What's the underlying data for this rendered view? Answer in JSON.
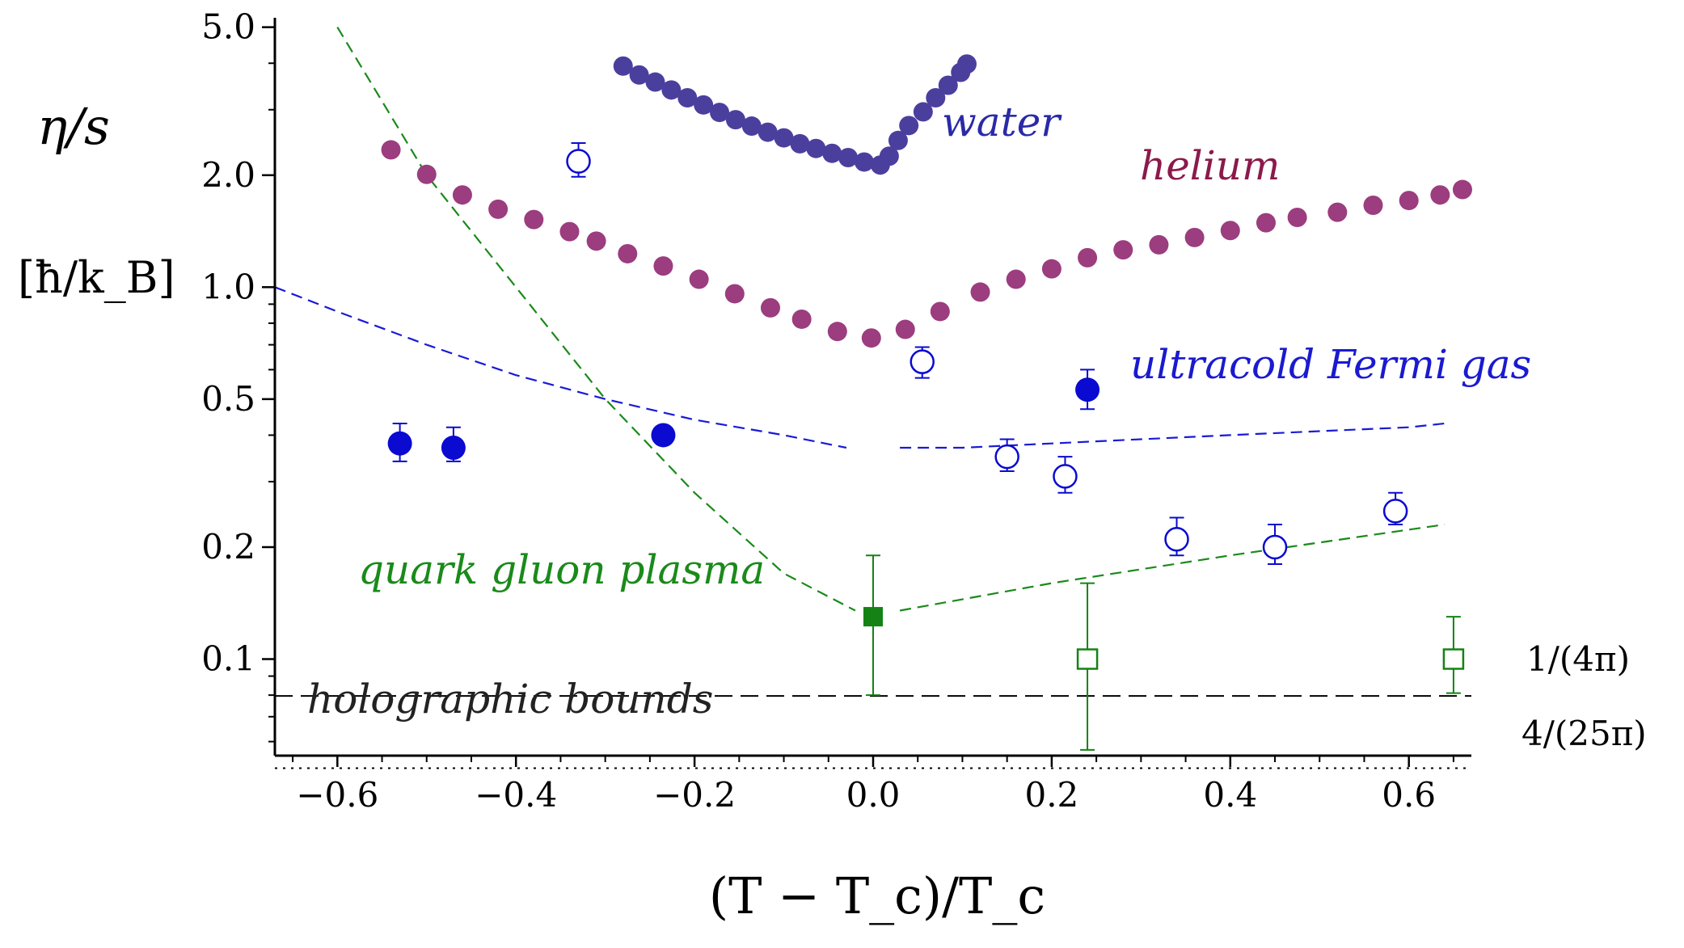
{
  "chart_data": {
    "type": "scatter",
    "title": "",
    "xlabel": "(T − T_c)/T_c",
    "ylabel": "η/s",
    "ylabel_unit": "[ħ/k_B]",
    "xlim": [
      -0.67,
      0.67
    ],
    "ylim": [
      0.055,
      5.3
    ],
    "yscale": "log",
    "grid": false,
    "legend": "none (inline labels)",
    "x_ticks": [
      -0.6,
      -0.4,
      -0.2,
      0.0,
      0.2,
      0.4,
      0.6
    ],
    "x_tick_labels": [
      "−0.6",
      "−0.4",
      "−0.2",
      "0.0",
      "0.2",
      "0.4",
      "0.6"
    ],
    "y_ticks": [
      0.1,
      0.2,
      0.5,
      1.0,
      2.0,
      5.0
    ],
    "y_tick_labels": [
      "0.1",
      "0.2",
      "0.5",
      "1.0",
      "2.0",
      "5.0"
    ],
    "series": [
      {
        "name": "water",
        "label": "water",
        "color": "#4b3f9e",
        "marker": "filled-circle",
        "x": [
          -0.28,
          -0.262,
          -0.244,
          -0.226,
          -0.208,
          -0.19,
          -0.172,
          -0.154,
          -0.136,
          -0.118,
          -0.1,
          -0.082,
          -0.064,
          -0.046,
          -0.028,
          -0.01,
          0.008,
          0.018,
          0.028,
          0.04,
          0.056,
          0.07,
          0.084,
          0.098,
          0.105
        ],
        "y": [
          3.93,
          3.72,
          3.56,
          3.39,
          3.23,
          3.09,
          2.95,
          2.82,
          2.71,
          2.61,
          2.52,
          2.43,
          2.36,
          2.29,
          2.23,
          2.17,
          2.13,
          2.25,
          2.48,
          2.72,
          2.96,
          3.23,
          3.49,
          3.78,
          3.98
        ]
      },
      {
        "name": "helium",
        "label": "helium",
        "color": "#9b3d7e",
        "marker": "filled-circle",
        "x": [
          -0.54,
          -0.5,
          -0.46,
          -0.42,
          -0.38,
          -0.34,
          -0.31,
          -0.275,
          -0.235,
          -0.195,
          -0.155,
          -0.115,
          -0.08,
          -0.04,
          -0.002,
          0.036,
          0.075,
          0.12,
          0.16,
          0.2,
          0.24,
          0.28,
          0.32,
          0.36,
          0.4,
          0.44,
          0.475,
          0.52,
          0.56,
          0.6,
          0.635,
          0.66
        ],
        "y": [
          2.34,
          2.01,
          1.77,
          1.62,
          1.52,
          1.41,
          1.33,
          1.23,
          1.14,
          1.05,
          0.96,
          0.88,
          0.82,
          0.76,
          0.73,
          0.77,
          0.86,
          0.97,
          1.05,
          1.12,
          1.2,
          1.26,
          1.3,
          1.36,
          1.42,
          1.49,
          1.54,
          1.59,
          1.66,
          1.71,
          1.77,
          1.83
        ]
      },
      {
        "name": "ultracold Fermi gas (filled)",
        "label": "ultracold Fermi gas",
        "color": "#0a0ad0",
        "marker": "filled-circle",
        "x": [
          -0.53,
          -0.47,
          -0.235,
          0.24
        ],
        "y": [
          0.38,
          0.37,
          0.4,
          0.53
        ],
        "yerr_low": [
          0.34,
          0.34,
          0.38,
          0.47
        ],
        "yerr_high": [
          0.43,
          0.42,
          0.42,
          0.6
        ]
      },
      {
        "name": "ultracold Fermi gas (open)",
        "color": "#0a0ad0",
        "marker": "open-circle",
        "x": [
          -0.33,
          0.055,
          0.15,
          0.215,
          0.34,
          0.45,
          0.585
        ],
        "y": [
          2.18,
          0.63,
          0.35,
          0.31,
          0.21,
          0.2,
          0.25
        ],
        "yerr_low": [
          1.98,
          0.57,
          0.32,
          0.28,
          0.19,
          0.18,
          0.23
        ],
        "yerr_high": [
          2.44,
          0.69,
          0.39,
          0.35,
          0.24,
          0.23,
          0.28
        ]
      },
      {
        "name": "quark gluon plasma (filled)",
        "label": "quark gluon plasma",
        "color": "#148214",
        "marker": "filled-square",
        "x": [
          0.0
        ],
        "y": [
          0.13
        ],
        "yerr_low": [
          0.08
        ],
        "yerr_high": [
          0.19
        ]
      },
      {
        "name": "quark gluon plasma (open)",
        "color": "#148214",
        "marker": "open-square",
        "x": [
          0.24,
          0.65
        ],
        "y": [
          0.1,
          0.1
        ],
        "yerr_low": [
          0.057,
          0.081
        ],
        "yerr_high": [
          0.16,
          0.13
        ]
      }
    ],
    "curves": [
      {
        "name": "ultracold Fermi gas theory",
        "color": "#1a1ad8",
        "style": "dashed",
        "segments": [
          {
            "x": [
              -0.67,
              -0.6,
              -0.5,
              -0.4,
              -0.3,
              -0.2,
              -0.1,
              -0.03
            ],
            "y": [
              1.0,
              0.86,
              0.7,
              0.58,
              0.5,
              0.44,
              0.4,
              0.37
            ]
          },
          {
            "x": [
              0.03,
              0.1,
              0.2,
              0.3,
              0.4,
              0.5,
              0.6,
              0.64
            ],
            "y": [
              0.37,
              0.37,
              0.38,
              0.39,
              0.4,
              0.41,
              0.42,
              0.43
            ]
          }
        ]
      },
      {
        "name": "quark gluon plasma theory",
        "color": "#1a8a1a",
        "style": "dashed",
        "segments": [
          {
            "x": [
              -0.6,
              -0.5,
              -0.4,
              -0.3,
              -0.2,
              -0.1,
              -0.02
            ],
            "y": [
              5.0,
              2.0,
              1.0,
              0.5,
              0.28,
              0.17,
              0.135
            ]
          },
          {
            "x": [
              0.03,
              0.2,
              0.4,
              0.64
            ],
            "y": [
              0.135,
              0.16,
              0.19,
              0.23
            ]
          }
        ]
      }
    ],
    "reference_lines": [
      {
        "label": "1/(4π)",
        "y": 0.0796,
        "style": "dashed",
        "color": "#000000"
      },
      {
        "label": "4/(25π)",
        "y": 0.0509,
        "style": "dotted",
        "color": "#000000"
      }
    ],
    "annotations": [
      {
        "text": "water",
        "color": "#2a2aa8"
      },
      {
        "text": "helium",
        "color": "#8b1a4a"
      },
      {
        "text": "ultracold Fermi gas",
        "color": "#1a1ad0"
      },
      {
        "text": "quark gluon plasma",
        "color": "#1a8a1a"
      },
      {
        "text": "holographic bounds",
        "color": "#222222"
      }
    ]
  }
}
